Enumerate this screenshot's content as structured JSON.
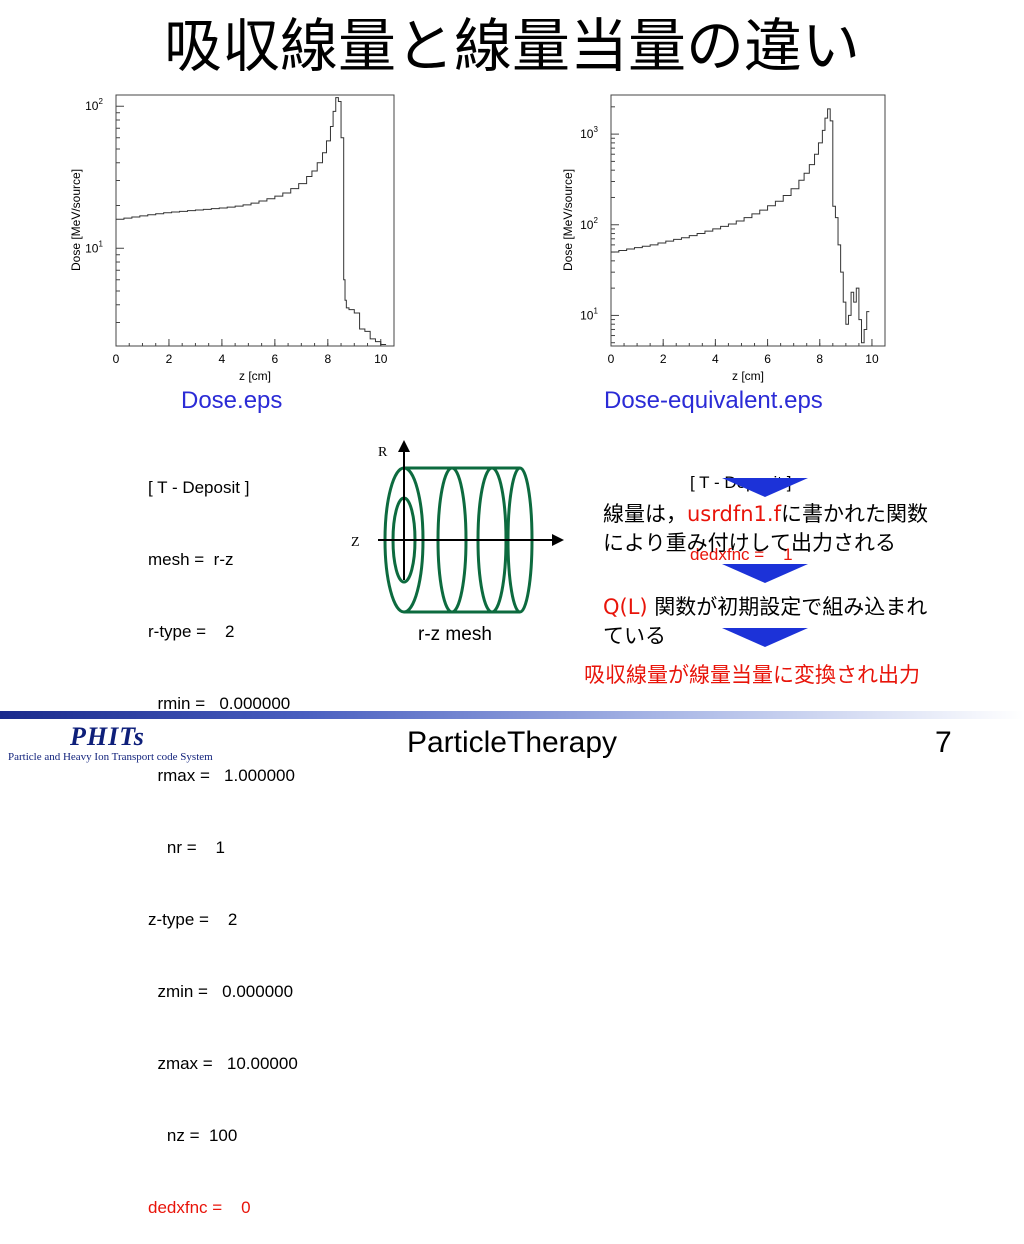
{
  "slide": {
    "title": "吸収線量と線量当量の違い",
    "footer": {
      "center": "ParticleTherapy",
      "page": "7",
      "logo": "PHITs",
      "logo_sub": "Particle and Heavy Ion Transport code System"
    }
  },
  "left_plot": {
    "caption": "Dose.eps",
    "ylabel": "Dose [MeV/source]",
    "xlabel": "z [cm]",
    "xticks": [
      "0",
      "2",
      "4",
      "6",
      "8",
      "10"
    ],
    "yticks": [
      {
        "base": "10",
        "exp": "1"
      },
      {
        "base": "10",
        "exp": "2"
      }
    ]
  },
  "right_plot": {
    "caption": "Dose-equivalent.eps",
    "ylabel": "Dose [MeV/source]",
    "xlabel": "z [cm]",
    "xticks": [
      "0",
      "2",
      "4",
      "6",
      "8",
      "10"
    ],
    "yticks": [
      {
        "base": "10",
        "exp": "1"
      },
      {
        "base": "10",
        "exp": "2"
      },
      {
        "base": "10",
        "exp": "3"
      }
    ]
  },
  "left_code": [
    "[ T - Deposit ]",
    "mesh =  r-z",
    "r-type =    2",
    "  rmin =   0.000000",
    "  rmax =   1.000000",
    "    nr =    1",
    "z-type =    2",
    "  zmin =   0.000000",
    "  zmax =   10.00000",
    "    nz =  100"
  ],
  "left_code_red": "dedxfnc =    0",
  "right_code": {
    "line1": "[ T - Deposit ]",
    "line2": "dedxfnc =    1"
  },
  "diagram": {
    "r_label": "R",
    "z_label": "Z",
    "caption": "r-z mesh"
  },
  "explain": {
    "p1_a": "線量は，",
    "p1_red": "usrdfn1.f",
    "p1_b": "に書かれた関数",
    "p1_line2": "により重み付けして出力される",
    "p2_red": "Q(L)",
    "p2_a": " 関数が初期設定で組み込まれ",
    "p2_line2": "ている",
    "conclusion": "吸収線量が線量当量に変換され出力"
  },
  "chart_data": [
    {
      "type": "line",
      "title": "",
      "xlabel": "z [cm]",
      "ylabel": "Dose [MeV/source]",
      "yscale": "log",
      "xlim": [
        0,
        10.5
      ],
      "ylim": [
        2.05,
        120
      ],
      "series": [
        {
          "x": [
            0,
            0.3,
            0.6,
            0.9,
            1.2,
            1.5,
            1.8,
            2.1,
            2.4,
            2.7,
            3.0,
            3.3,
            3.6,
            3.9,
            4.2,
            4.5,
            4.8,
            5.1,
            5.4,
            5.7,
            6.0,
            6.3,
            6.6,
            6.9,
            7.2,
            7.4,
            7.6,
            7.8,
            7.95,
            8.1,
            8.2,
            8.3,
            8.4,
            8.5,
            8.6,
            8.65,
            8.7,
            8.8,
            9.0,
            9.2,
            9.4,
            9.6,
            9.8,
            10.0
          ],
          "y": [
            16.0,
            16.3,
            16.6,
            16.9,
            17.2,
            17.5,
            17.8,
            18.0,
            18.2,
            18.4,
            18.6,
            18.8,
            19.0,
            19.2,
            19.5,
            19.8,
            20.2,
            20.8,
            21.5,
            22.3,
            23.3,
            24.5,
            26.3,
            28.5,
            32.0,
            35.0,
            40.0,
            47.0,
            57.0,
            72.0,
            92.0,
            115.0,
            108.0,
            60.0,
            6.0,
            4.3,
            3.8,
            3.7,
            3.5,
            2.7,
            2.6,
            2.3,
            2.2,
            2.1
          ]
        }
      ]
    },
    {
      "type": "line",
      "title": "",
      "xlabel": "z [cm]",
      "ylabel": "Dose [MeV/source]",
      "yscale": "log",
      "xlim": [
        0,
        10.5
      ],
      "ylim": [
        4.6,
        2700
      ],
      "series": [
        {
          "x": [
            0,
            0.3,
            0.6,
            0.9,
            1.2,
            1.5,
            1.8,
            2.1,
            2.4,
            2.7,
            3.0,
            3.3,
            3.6,
            3.9,
            4.2,
            4.5,
            4.8,
            5.1,
            5.4,
            5.7,
            6.0,
            6.3,
            6.6,
            6.9,
            7.2,
            7.4,
            7.6,
            7.8,
            7.95,
            8.1,
            8.2,
            8.3,
            8.4,
            8.5,
            8.6,
            8.7,
            8.8,
            8.9,
            9.0,
            9.1,
            9.2,
            9.3,
            9.4,
            9.5,
            9.6,
            9.7,
            9.8
          ],
          "y": [
            50,
            52,
            54,
            56,
            58,
            60,
            63,
            66,
            69,
            72,
            76,
            80,
            85,
            90,
            96,
            102,
            110,
            120,
            132,
            145,
            162,
            182,
            210,
            250,
            310,
            370,
            460,
            600,
            800,
            1100,
            1500,
            1900,
            1400,
            160,
            120,
            60,
            30,
            14,
            8,
            10,
            18,
            14,
            20,
            9,
            5,
            7,
            11
          ]
        }
      ]
    }
  ]
}
